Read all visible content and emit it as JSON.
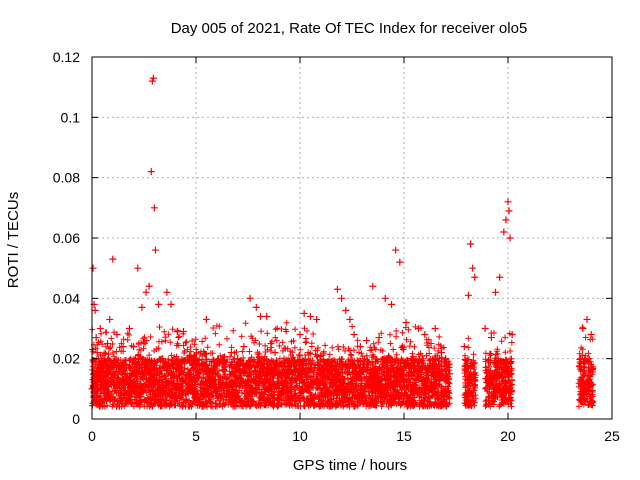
{
  "chart_data": {
    "type": "scatter",
    "title": "Day 005 of 2021, Rate Of TEC Index for receiver olo5",
    "xlabel": "GPS time / hours",
    "ylabel": "ROTI / TECUs",
    "xlim": [
      0,
      25
    ],
    "ylim": [
      0,
      0.12
    ],
    "xticks": [
      0,
      5,
      10,
      15,
      20,
      25
    ],
    "yticks": [
      0,
      0.02,
      0.04,
      0.06,
      0.08,
      0.1,
      0.12
    ],
    "xtick_labels": [
      "0",
      "5",
      "10",
      "15",
      "20",
      "25"
    ],
    "ytick_labels": [
      "0",
      "0.02",
      "0.04",
      "0.06",
      "0.08",
      "0.1",
      "0.12"
    ],
    "grid": true,
    "legend": "none",
    "marker": "plus",
    "color": "#ff0000",
    "series": [
      {
        "x": [
          0.0,
          0.05,
          0.1,
          0.15,
          0.2,
          0.25,
          0.3,
          0.4,
          0.55,
          0.75,
          0.85,
          1.0,
          1.2,
          1.5,
          1.8,
          2.0,
          2.2,
          2.4,
          2.6,
          2.75,
          2.85,
          2.9,
          2.95,
          3.0,
          3.05,
          3.2,
          3.4,
          3.6,
          3.8,
          4.1,
          4.4,
          4.7,
          5.0,
          5.3,
          5.5,
          5.8,
          6.1,
          6.4,
          6.7,
          7.0,
          7.3,
          7.6,
          7.9,
          8.1,
          8.4,
          8.6,
          8.8,
          9.2,
          9.6,
          10.0,
          10.2,
          10.5,
          10.8,
          11.0,
          11.2,
          11.5,
          11.8,
          12.0,
          12.2,
          12.4,
          12.6,
          12.9,
          13.2,
          13.5,
          13.8,
          14.1,
          14.4,
          14.6,
          14.8,
          15.1,
          15.4,
          15.7,
          16.0,
          16.3,
          16.5,
          16.8,
          17.0,
          17.2,
          17.9,
          18.1,
          18.2,
          18.3,
          18.4,
          18.9,
          19.2,
          19.4,
          19.6,
          19.8,
          19.9,
          20.0,
          20.05,
          20.1,
          20.2,
          23.5,
          23.6,
          23.8,
          24.0
        ],
        "y": [
          0.01,
          0.05,
          0.038,
          0.036,
          0.027,
          0.022,
          0.02,
          0.03,
          0.018,
          0.025,
          0.033,
          0.053,
          0.028,
          0.024,
          0.03,
          0.024,
          0.05,
          0.037,
          0.042,
          0.044,
          0.082,
          0.112,
          0.113,
          0.07,
          0.056,
          0.038,
          0.02,
          0.042,
          0.038,
          0.029,
          0.029,
          0.021,
          0.02,
          0.018,
          0.033,
          0.015,
          0.013,
          0.018,
          0.022,
          0.02,
          0.024,
          0.04,
          0.037,
          0.034,
          0.034,
          0.025,
          0.022,
          0.015,
          0.012,
          0.028,
          0.035,
          0.034,
          0.033,
          0.021,
          0.015,
          0.019,
          0.043,
          0.04,
          0.036,
          0.033,
          0.028,
          0.024,
          0.026,
          0.044,
          0.027,
          0.04,
          0.038,
          0.056,
          0.052,
          0.032,
          0.02,
          0.03,
          0.028,
          0.025,
          0.03,
          0.022,
          0.02,
          0.015,
          0.024,
          0.041,
          0.058,
          0.05,
          0.047,
          0.03,
          0.027,
          0.042,
          0.047,
          0.062,
          0.066,
          0.072,
          0.069,
          0.06,
          0.028,
          0.02,
          0.03,
          0.033,
          0.028
        ]
      }
    ]
  }
}
